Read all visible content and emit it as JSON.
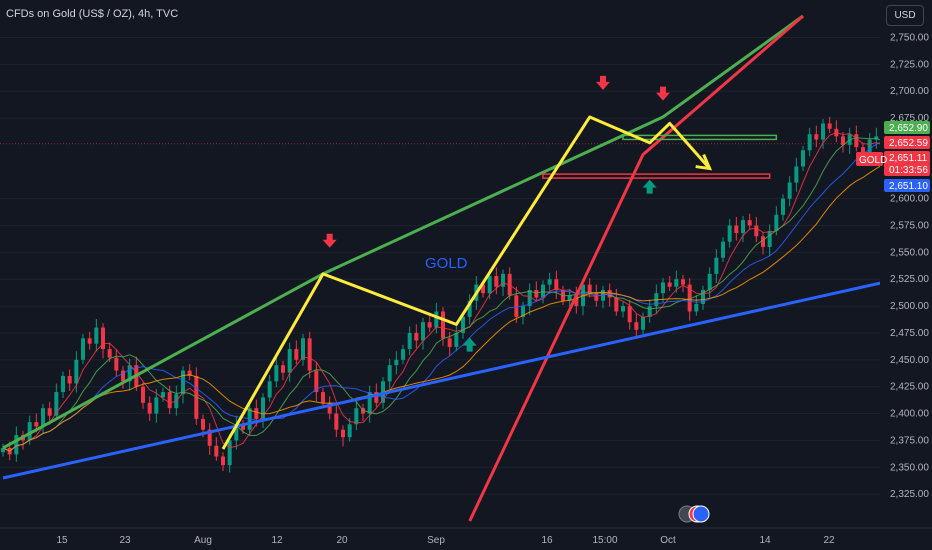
{
  "header": {
    "title": "CFDs on Gold (US$ / OZ), 4h, TVC",
    "currency": "USD"
  },
  "annotation": {
    "label": "GOLD"
  },
  "price_axis": {
    "ticks": [
      "2,750.00",
      "2,725.00",
      "2,700.00",
      "2,675.00",
      "2,600.00",
      "2,575.00",
      "2,550.00",
      "2,525.00",
      "2,500.00",
      "2,475.00",
      "2,450.00",
      "2,425.00",
      "2,400.00",
      "2,375.00",
      "2,350.00",
      "2,325.00"
    ],
    "tags": [
      {
        "text": "2,652.90",
        "color": "#4caf50"
      },
      {
        "text": "2,652.59",
        "color": "#f23645"
      },
      {
        "text": "2,651.11",
        "color": "#f23645"
      },
      {
        "text": "01:33:56",
        "color": "#f23645"
      },
      {
        "text": "2,651.10",
        "color": "#2962ff"
      }
    ],
    "symbol_tag": "GOLD"
  },
  "time_axis": {
    "ticks": [
      "15",
      "23",
      "Aug",
      "12",
      "20",
      "Sep",
      "16",
      "15:00",
      "Oct",
      "14",
      "22"
    ]
  },
  "chart_data": {
    "type": "candlestick",
    "ylim": [
      2315,
      2770
    ],
    "colors": {
      "up": "#089981",
      "down": "#f23645",
      "trend_green": "#4caf50",
      "trend_red": "#f23645",
      "trend_blue": "#2962ff",
      "pattern": "#ffeb3b",
      "arrow_down": "#f23645",
      "arrow_up": "#089981"
    },
    "closes": [
      2368,
      2362,
      2380,
      2375,
      2392,
      2388,
      2405,
      2398,
      2420,
      2435,
      2428,
      2450,
      2470,
      2465,
      2480,
      2460,
      2452,
      2440,
      2430,
      2445,
      2425,
      2410,
      2400,
      2415,
      2420,
      2405,
      2418,
      2440,
      2435,
      2395,
      2385,
      2370,
      2360,
      2352,
      2375,
      2390,
      2385,
      2405,
      2395,
      2415,
      2430,
      2445,
      2438,
      2460,
      2450,
      2470,
      2440,
      2420,
      2410,
      2400,
      2385,
      2378,
      2390,
      2405,
      2400,
      2420,
      2410,
      2430,
      2445,
      2450,
      2460,
      2475,
      2468,
      2485,
      2480,
      2495,
      2470,
      2462,
      2475,
      2490,
      2505,
      2520,
      2512,
      2528,
      2518,
      2530,
      2510,
      2490,
      2500,
      2515,
      2508,
      2520,
      2525,
      2515,
      2505,
      2510,
      2500,
      2520,
      2512,
      2505,
      2515,
      2508,
      2495,
      2500,
      2485,
      2478,
      2490,
      2500,
      2512,
      2522,
      2518,
      2525,
      2520,
      2495,
      2502,
      2515,
      2530,
      2545,
      2560,
      2575,
      2568,
      2580,
      2575,
      2565,
      2555,
      2570,
      2585,
      2600,
      2615,
      2630,
      2645,
      2660,
      2655,
      2670,
      2665,
      2658,
      2650,
      2660,
      2648,
      2640,
      2655,
      2658,
      2650,
      2651
    ],
    "trendlines": [
      {
        "name": "green",
        "points": [
          [
            0,
            2368
          ],
          [
            48,
            2530
          ],
          [
            99,
            2676
          ],
          [
            120,
            2770
          ]
        ]
      },
      {
        "name": "red",
        "points": [
          [
            70,
            2300
          ],
          [
            96,
            2641
          ],
          [
            120,
            2770
          ]
        ]
      },
      {
        "name": "blue",
        "points": [
          [
            0,
            2340
          ],
          [
            132,
            2522
          ]
        ]
      }
    ],
    "pattern_path": [
      [
        33,
        2367
      ],
      [
        48,
        2530
      ],
      [
        68,
        2483
      ],
      [
        88,
        2676
      ],
      [
        97,
        2652
      ],
      [
        100,
        2670
      ],
      [
        106,
        2628
      ]
    ],
    "zones": [
      {
        "name": "resistance",
        "price": 2657,
        "from": 93,
        "to": 116,
        "color": "#4caf50"
      },
      {
        "name": "support",
        "price": 2621,
        "from": 81,
        "to": 115,
        "color": "#f23645"
      }
    ],
    "arrows": [
      {
        "dir": "down",
        "x": 49,
        "price": 2558
      },
      {
        "dir": "down",
        "x": 90,
        "price": 2705
      },
      {
        "dir": "down",
        "x": 99,
        "price": 2695
      },
      {
        "dir": "up",
        "x": 70,
        "price": 2467
      },
      {
        "dir": "up",
        "x": 97,
        "price": 2614
      }
    ],
    "last_price": 2651.11
  }
}
